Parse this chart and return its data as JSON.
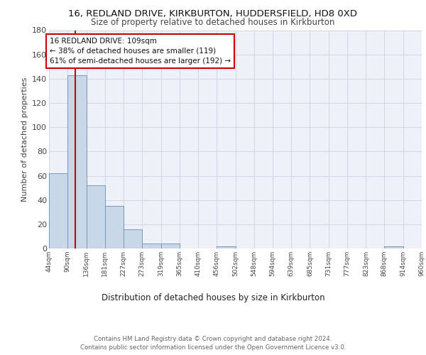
{
  "title1": "16, REDLAND DRIVE, KIRKBURTON, HUDDERSFIELD, HD8 0XD",
  "title2": "Size of property relative to detached houses in Kirkburton",
  "xlabel": "Distribution of detached houses by size in Kirkburton",
  "ylabel": "Number of detached properties",
  "footer": "Contains HM Land Registry data © Crown copyright and database right 2024.\nContains public sector information licensed under the Open Government Licence v3.0.",
  "bin_labels": [
    "44sqm",
    "90sqm",
    "136sqm",
    "181sqm",
    "227sqm",
    "273sqm",
    "319sqm",
    "365sqm",
    "410sqm",
    "456sqm",
    "502sqm",
    "548sqm",
    "594sqm",
    "639sqm",
    "685sqm",
    "731sqm",
    "777sqm",
    "823sqm",
    "868sqm",
    "914sqm",
    "960sqm"
  ],
  "bar_heights": [
    62,
    143,
    52,
    35,
    16,
    4,
    4,
    0,
    0,
    2,
    0,
    0,
    0,
    0,
    0,
    0,
    0,
    0,
    2,
    0,
    0
  ],
  "bar_color": "#c8d8e8",
  "bar_edge_color": "#7799bb",
  "grid_color": "#d0d8e8",
  "background_color": "#eef2f8",
  "redline_x": 109,
  "annotation_text": "16 REDLAND DRIVE: 109sqm\n← 38% of detached houses are smaller (119)\n61% of semi-detached houses are larger (192) →",
  "annotation_box_color": "#ffffff",
  "annotation_box_edge": "#cc0000",
  "redline_color": "#cc0000",
  "ylim": [
    0,
    180
  ],
  "yticks": [
    0,
    20,
    40,
    60,
    80,
    100,
    120,
    140,
    160,
    180
  ],
  "bin_edges": [
    44,
    90,
    136,
    181,
    227,
    273,
    319,
    365,
    410,
    456,
    502,
    548,
    594,
    639,
    685,
    731,
    777,
    823,
    868,
    914,
    960
  ]
}
